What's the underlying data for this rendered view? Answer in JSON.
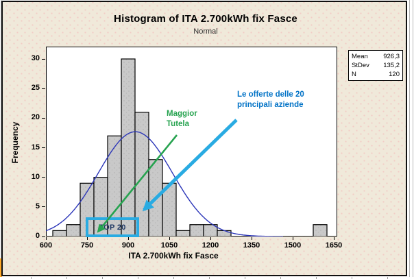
{
  "chart_data": {
    "type": "bar",
    "variant": "histogram-with-normal-fit",
    "title": "Histogram of ITA 2.700kWh fix Fasce",
    "subtitle": "Normal",
    "xlabel": "ITA 2.700kWh fix Fasce",
    "ylabel": "Frequency",
    "bin_width": 50,
    "bin_centers": [
      650,
      700,
      750,
      800,
      850,
      900,
      950,
      1000,
      1050,
      1100,
      1150,
      1200,
      1250,
      1600
    ],
    "frequencies": [
      1,
      2,
      9,
      10,
      17,
      30,
      21,
      13,
      9,
      1,
      2,
      2,
      1,
      2
    ],
    "x_ticks": [
      600,
      750,
      900,
      1050,
      1200,
      1350,
      1500,
      1650
    ],
    "y_ticks": [
      0,
      5,
      10,
      15,
      20,
      25,
      30
    ],
    "xlim": [
      600,
      1662
    ],
    "ylim": [
      0,
      32
    ],
    "grid": false,
    "normal_fit": {
      "mean": 926.3,
      "stdev": 135.2,
      "n": 120
    },
    "bar_fill": "#C9C9C9",
    "bar_stroke": "#000000",
    "curve_color": "#2B35B8"
  },
  "stats_panel": {
    "rows": [
      {
        "label": "Mean",
        "value": "926,3"
      },
      {
        "label": "StDev",
        "value": "135,2"
      },
      {
        "label": "N",
        "value": "120"
      }
    ]
  },
  "annotations": {
    "green": {
      "lines": [
        "Maggior",
        "Tutela"
      ],
      "color": "#27A350"
    },
    "blue": {
      "lines": [
        "Le offerte delle  20",
        "principali aziende"
      ],
      "color": "#0072C6"
    },
    "top20": {
      "label": "TOP 20",
      "box_color": "#29ABE2",
      "text_color": "#1F3864"
    }
  },
  "colors": {
    "figure_background": "#F0E9DA",
    "figure_dots": "#F2CCC6",
    "plot_background": "#FFFFFF"
  }
}
